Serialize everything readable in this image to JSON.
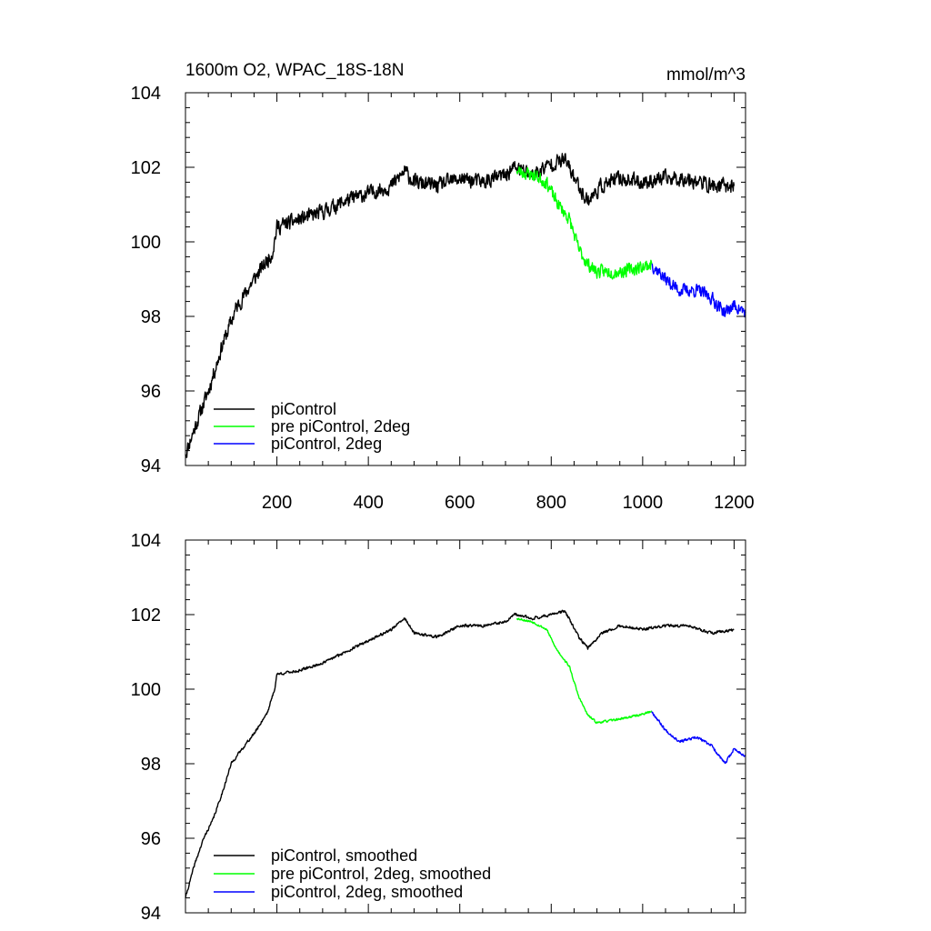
{
  "chart_data": [
    {
      "type": "line",
      "title": "1600m O2, WPAC_18S-18N",
      "units": "mmol/m^3",
      "xlabel": "",
      "ylabel": "",
      "xlim": [
        0,
        1225
      ],
      "ylim": [
        94,
        104
      ],
      "xticks": [
        200,
        400,
        600,
        800,
        1000,
        1200
      ],
      "xtick_labels": [
        "200",
        "400",
        "600",
        "800",
        "1000",
        "1200"
      ],
      "yticks": [
        94,
        96,
        98,
        100,
        102,
        104
      ],
      "ytick_labels": [
        "94",
        "96",
        "98",
        "100",
        "102",
        "104"
      ],
      "legend_position": "bottom-left",
      "series": [
        {
          "name": "piControl",
          "color": "#000000",
          "noise": 0.28,
          "seed": 11,
          "points": [
            [
              0,
              94.3
            ],
            [
              20,
              95.0
            ],
            [
              50,
              96.0
            ],
            [
              80,
              97.2
            ],
            [
              110,
              98.2
            ],
            [
              150,
              99.0
            ],
            [
              190,
              99.7
            ],
            [
              200,
              100.4
            ],
            [
              250,
              100.6
            ],
            [
              300,
              100.8
            ],
            [
              350,
              101.1
            ],
            [
              400,
              101.3
            ],
            [
              450,
              101.5
            ],
            [
              480,
              101.9
            ],
            [
              500,
              101.6
            ],
            [
              550,
              101.5
            ],
            [
              600,
              101.7
            ],
            [
              650,
              101.6
            ],
            [
              700,
              101.8
            ],
            [
              720,
              102.0
            ],
            [
              760,
              101.8
            ],
            [
              800,
              102.1
            ],
            [
              830,
              102.2
            ],
            [
              860,
              101.5
            ],
            [
              880,
              101.1
            ],
            [
              910,
              101.5
            ],
            [
              950,
              101.7
            ],
            [
              1000,
              101.6
            ],
            [
              1050,
              101.7
            ],
            [
              1100,
              101.7
            ],
            [
              1150,
              101.5
            ],
            [
              1200,
              101.5
            ]
          ]
        },
        {
          "name": "pre piControl, 2deg",
          "color": "#00ff00",
          "noise": 0.24,
          "seed": 23,
          "points": [
            [
              725,
              101.9
            ],
            [
              760,
              101.8
            ],
            [
              790,
              101.6
            ],
            [
              810,
              101.1
            ],
            [
              840,
              100.6
            ],
            [
              860,
              99.8
            ],
            [
              880,
              99.4
            ],
            [
              900,
              99.2
            ],
            [
              950,
              99.2
            ],
            [
              990,
              99.3
            ],
            [
              1020,
              99.4
            ]
          ]
        },
        {
          "name": "piControl, 2deg",
          "color": "#0000ff",
          "noise": 0.24,
          "seed": 37,
          "points": [
            [
              1020,
              99.4
            ],
            [
              1050,
              99.0
            ],
            [
              1080,
              98.7
            ],
            [
              1120,
              98.7
            ],
            [
              1150,
              98.5
            ],
            [
              1180,
              98.1
            ],
            [
              1200,
              98.3
            ],
            [
              1225,
              98.1
            ]
          ]
        }
      ]
    },
    {
      "type": "line",
      "title": "",
      "xlabel": "",
      "ylabel": "",
      "xlim": [
        0,
        1225
      ],
      "ylim": [
        94,
        104
      ],
      "xticks": [
        200,
        400,
        600,
        800,
        1000,
        1200
      ],
      "yticks": [
        94,
        96,
        98,
        100,
        102,
        104
      ],
      "ytick_labels": [
        "94",
        "96",
        "98",
        "100",
        "102",
        "104"
      ],
      "legend_position": "bottom-left",
      "series": [
        {
          "name": "piControl, smoothed",
          "color": "#000000",
          "noise": 0.05,
          "seed": 41,
          "points": [
            [
              0,
              94.4
            ],
            [
              20,
              95.3
            ],
            [
              40,
              96.0
            ],
            [
              60,
              96.5
            ],
            [
              80,
              97.2
            ],
            [
              100,
              98.0
            ],
            [
              130,
              98.5
            ],
            [
              150,
              98.8
            ],
            [
              180,
              99.4
            ],
            [
              195,
              100.0
            ],
            [
              200,
              100.4
            ],
            [
              250,
              100.5
            ],
            [
              300,
              100.7
            ],
            [
              350,
              101.0
            ],
            [
              400,
              101.3
            ],
            [
              450,
              101.6
            ],
            [
              480,
              101.9
            ],
            [
              500,
              101.5
            ],
            [
              550,
              101.4
            ],
            [
              600,
              101.7
            ],
            [
              650,
              101.7
            ],
            [
              700,
              101.8
            ],
            [
              720,
              102.0
            ],
            [
              760,
              101.9
            ],
            [
              800,
              102.0
            ],
            [
              830,
              102.1
            ],
            [
              860,
              101.4
            ],
            [
              880,
              101.1
            ],
            [
              910,
              101.5
            ],
            [
              950,
              101.7
            ],
            [
              1000,
              101.6
            ],
            [
              1050,
              101.7
            ],
            [
              1100,
              101.7
            ],
            [
              1150,
              101.5
            ],
            [
              1200,
              101.6
            ]
          ]
        },
        {
          "name": "pre piControl, 2deg, smoothed",
          "color": "#00ff00",
          "noise": 0.04,
          "seed": 53,
          "points": [
            [
              725,
              101.9
            ],
            [
              760,
              101.8
            ],
            [
              790,
              101.6
            ],
            [
              810,
              101.1
            ],
            [
              840,
              100.6
            ],
            [
              860,
              99.8
            ],
            [
              880,
              99.3
            ],
            [
              900,
              99.1
            ],
            [
              950,
              99.2
            ],
            [
              990,
              99.3
            ],
            [
              1020,
              99.4
            ]
          ]
        },
        {
          "name": "piControl, 2deg, smoothed",
          "color": "#0000ff",
          "noise": 0.05,
          "seed": 67,
          "points": [
            [
              1020,
              99.4
            ],
            [
              1050,
              98.9
            ],
            [
              1080,
              98.6
            ],
            [
              1120,
              98.7
            ],
            [
              1150,
              98.5
            ],
            [
              1180,
              98.0
            ],
            [
              1200,
              98.4
            ],
            [
              1225,
              98.2
            ]
          ]
        }
      ]
    }
  ]
}
